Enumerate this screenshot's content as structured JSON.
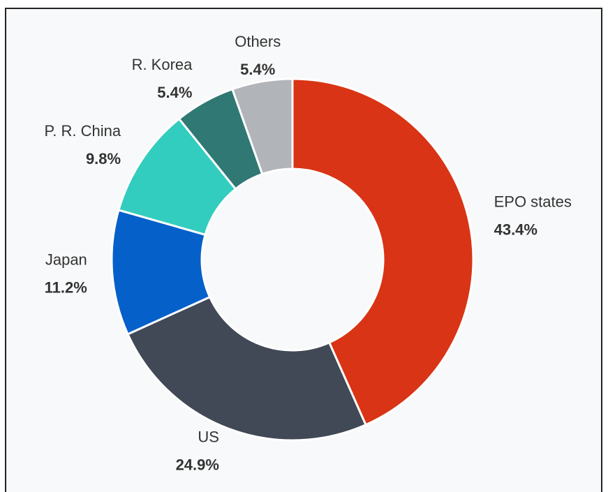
{
  "chart_data": {
    "type": "donut",
    "categories": [
      "EPO states",
      "US",
      "Japan",
      "P. R. China",
      "R. Korea",
      "Others"
    ],
    "values": [
      43.4,
      24.9,
      11.2,
      9.8,
      5.4,
      5.4
    ],
    "value_labels": [
      "43.4%",
      "24.9%",
      "11.2%",
      "9.8%",
      "5.4%",
      "5.4%"
    ],
    "colors": [
      "#d93415",
      "#414856",
      "#0660c9",
      "#33cdbf",
      "#2f7874",
      "#b1b4b9"
    ]
  }
}
